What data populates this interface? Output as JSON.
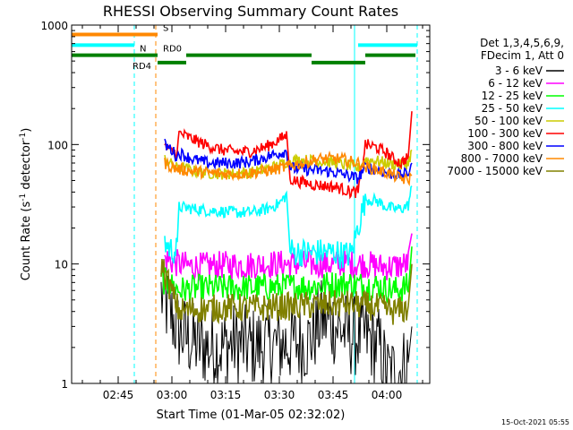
{
  "chart_data": {
    "type": "line",
    "title": "RHESSI Observing Summary Count Rates",
    "xlabel": "Start Time (01-Mar-05 02:32:02)",
    "ylabel_parts": [
      "Count Rate (s",
      "-1",
      " detector",
      "-1",
      ")"
    ],
    "x_unit": "minutes after 02:32:02",
    "xlim": [
      0,
      100
    ],
    "ylim": [
      1,
      1000
    ],
    "y_scale": "log",
    "x_ticks": [
      {
        "pos": 13,
        "label": "02:45"
      },
      {
        "pos": 28,
        "label": "03:00"
      },
      {
        "pos": 43,
        "label": "03:15"
      },
      {
        "pos": 58,
        "label": "03:30"
      },
      {
        "pos": 73,
        "label": "03:45"
      },
      {
        "pos": 88,
        "label": "04:00"
      }
    ],
    "y_ticks": [
      {
        "value": 1,
        "label": "1"
      },
      {
        "value": 10,
        "label": "10"
      },
      {
        "value": 100,
        "label": "100"
      },
      {
        "value": 1000,
        "label": "1000"
      }
    ],
    "legend_header": [
      "Det 1,3,4,5,6,9,",
      "FDecim 1, Att 0"
    ],
    "legend_placement": "right",
    "timestamp": "15-Oct-2021 05:55",
    "series": [
      {
        "name": "3 - 6 keV",
        "color": "#000000",
        "x": [
          25,
          30,
          34,
          38,
          42,
          46,
          50,
          54,
          58,
          62,
          66,
          70,
          74,
          78,
          82,
          86,
          88,
          90,
          92,
          94,
          95
        ],
        "y": [
          5.5,
          2.7,
          2.2,
          2.0,
          2.0,
          2.2,
          2.0,
          2.1,
          2.1,
          2.2,
          2.2,
          3.5,
          3.0,
          2.5,
          2.5,
          2.0,
          1.2,
          1.2,
          1.3,
          1.5,
          3.0
        ]
      },
      {
        "name": "6 - 12 keV",
        "color": "#ff00ff",
        "x": [
          26,
          30,
          34,
          38,
          42,
          46,
          50,
          54,
          58,
          62,
          66,
          70,
          74,
          78,
          82,
          86,
          90,
          94,
          95
        ],
        "y": [
          11,
          10,
          9.5,
          9.6,
          9.8,
          9.8,
          9.8,
          10,
          10,
          10,
          10,
          10,
          10,
          10,
          10,
          9.5,
          9.5,
          10,
          18
        ]
      },
      {
        "name": "12 - 25 keV",
        "color": "#00ff00",
        "x": [
          25,
          30,
          34,
          38,
          42,
          46,
          50,
          54,
          58,
          62,
          66,
          70,
          74,
          78,
          82,
          86,
          90,
          94,
          95
        ],
        "y": [
          7.5,
          6.0,
          6.2,
          6.3,
          6.3,
          6.3,
          6.3,
          6.4,
          6.4,
          6.5,
          6.5,
          6.6,
          6.8,
          6.8,
          6.6,
          6.5,
          6.0,
          6.5,
          14
        ]
      },
      {
        "name": "25 - 50 keV",
        "color": "#00ffff",
        "x": [
          26,
          28,
          29.5,
          30,
          34,
          38,
          42,
          46,
          50,
          54,
          58,
          60,
          61,
          62,
          65,
          68,
          71,
          74,
          75,
          78,
          82,
          85,
          88,
          90,
          92,
          94,
          95
        ],
        "y": [
          15,
          13,
          13,
          30,
          29,
          28,
          27.5,
          27,
          27,
          28.5,
          32,
          38,
          13,
          12.5,
          12.5,
          12.5,
          12.5,
          12.5,
          12,
          12,
          35,
          34,
          30,
          29,
          29,
          31,
          45
        ]
      },
      {
        "name": "50 - 100 keV",
        "color": "#cccc00",
        "x": [
          26,
          28,
          29.5,
          30,
          34,
          38,
          42,
          46,
          50,
          54,
          58,
          60,
          62,
          65,
          68,
          71,
          74,
          76,
          78,
          80,
          82,
          85,
          88,
          90,
          92,
          94,
          95
        ],
        "y": [
          75,
          68,
          63,
          65,
          60,
          58,
          57,
          57,
          58,
          62,
          67,
          72,
          74,
          74,
          73,
          72,
          70,
          68,
          66,
          63,
          75,
          73,
          70,
          68,
          67,
          70,
          90
        ]
      },
      {
        "name": "100 - 300 keV",
        "color": "#ff0000",
        "x": [
          26,
          28,
          29.5,
          30,
          34,
          38,
          42,
          46,
          50,
          54,
          58,
          60,
          61,
          62,
          65,
          68,
          71,
          74,
          76,
          78,
          80,
          82,
          85,
          88,
          90,
          92,
          94,
          95
        ],
        "y": [
          95,
          88,
          85,
          125,
          110,
          98,
          90,
          87,
          88,
          95,
          110,
          120,
          52,
          50,
          48,
          46,
          45,
          44,
          42,
          40,
          40,
          100,
          95,
          85,
          75,
          70,
          80,
          190
        ]
      },
      {
        "name": "300 - 800 keV",
        "color": "#0000ff",
        "x": [
          26,
          28,
          29.5,
          30,
          34,
          38,
          42,
          46,
          50,
          54,
          58,
          60,
          61,
          62,
          65,
          68,
          71,
          74,
          76,
          78,
          80,
          82,
          85,
          88,
          90,
          92,
          94,
          95
        ],
        "y": [
          100,
          90,
          78,
          85,
          75,
          70,
          70,
          70,
          72,
          78,
          85,
          88,
          65,
          63,
          62,
          61,
          60,
          58,
          56,
          54,
          52,
          65,
          62,
          58,
          56,
          55,
          58,
          70
        ]
      },
      {
        "name": "800 - 7000 keV",
        "color": "#ff8800",
        "x": [
          26,
          28,
          30,
          34,
          38,
          42,
          46,
          50,
          54,
          58,
          60,
          62,
          65,
          68,
          71,
          74,
          76,
          78,
          80,
          82,
          85,
          88,
          90,
          92,
          94,
          95
        ],
        "y": [
          70,
          65,
          62,
          60,
          58,
          57,
          57,
          58,
          60,
          63,
          65,
          68,
          70,
          75,
          76,
          76,
          75,
          72,
          70,
          65,
          62,
          58,
          55,
          52,
          50,
          55
        ]
      },
      {
        "name": "7000 - 15000 keV",
        "color": "#808000",
        "x": [
          25,
          30,
          34,
          38,
          42,
          46,
          50,
          54,
          58,
          62,
          66,
          70,
          74,
          78,
          82,
          86,
          90,
          94,
          95
        ],
        "y": [
          10,
          4.0,
          4.2,
          4.2,
          4.3,
          4.3,
          4.3,
          4.3,
          4.4,
          4.4,
          4.5,
          4.5,
          4.6,
          4.6,
          4.5,
          4.3,
          4.0,
          4.2,
          10
        ]
      }
    ],
    "flags": [
      {
        "label": "S",
        "color": "#ff8800",
        "y": 835,
        "segments": [
          [
            0,
            24
          ]
        ],
        "label_x": 25.5
      },
      {
        "label": "N",
        "color": "#00ffff",
        "y": 680,
        "segments": [
          [
            0,
            17.5
          ],
          [
            80,
            96.5
          ]
        ],
        "label_x": 19
      },
      {
        "label": "RD0",
        "color": "#008000",
        "y": 560,
        "segments": [
          [
            0,
            24
          ],
          [
            32,
            67
          ],
          [
            82,
            96
          ]
        ],
        "label_x": 25.5
      },
      {
        "label": "RD4",
        "color": "#008000",
        "y": 485,
        "segments": [
          [
            24,
            32
          ],
          [
            67,
            82
          ]
        ],
        "label_x": 17
      }
    ],
    "vlines": [
      {
        "x": 0,
        "color": "#00ffff",
        "style": "solid"
      },
      {
        "x": 17.5,
        "color": "#00ffff",
        "style": "dashed"
      },
      {
        "x": 23.5,
        "color": "#ff8800",
        "style": "dashed"
      },
      {
        "x": 79,
        "color": "#00ffff",
        "style": "solid"
      },
      {
        "x": 96.5,
        "color": "#00ffff",
        "style": "dashed"
      }
    ]
  }
}
